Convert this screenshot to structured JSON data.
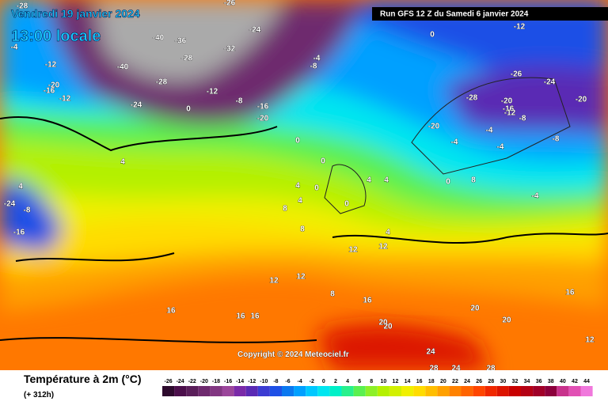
{
  "header": {
    "date": "Vendredi 19 janvier 2024",
    "time": "13:00 locale",
    "run": "Run GFS 12 Z du Samedi 6 janvier 2024"
  },
  "copyright": "Copyright © 2024 Meteociel.fr",
  "legend": {
    "title": "Température à 2m (°C)",
    "subtitle": "(+ 312h)",
    "ticks": [
      -26,
      -24,
      -22,
      -20,
      -18,
      -16,
      -14,
      -12,
      -10,
      -8,
      -6,
      -4,
      -2,
      0,
      2,
      4,
      6,
      8,
      10,
      12,
      14,
      16,
      18,
      20,
      22,
      24,
      26,
      28,
      30,
      32,
      34,
      36,
      38,
      40,
      42,
      44
    ],
    "colors": [
      "#2d0a2d",
      "#4b0f4b",
      "#5a1e5a",
      "#6e2a6e",
      "#823782",
      "#9b469b",
      "#7a2aa8",
      "#5a2ab4",
      "#3c3cd2",
      "#1e50e6",
      "#0a78f0",
      "#00a0ff",
      "#00c8ff",
      "#00e6f0",
      "#00f0c8",
      "#28f08c",
      "#5af050",
      "#8cf028",
      "#b4f000",
      "#d2f000",
      "#f0f000",
      "#ffdc00",
      "#ffbe00",
      "#ffa000",
      "#ff8200",
      "#ff6400",
      "#ff4600",
      "#f02800",
      "#dc1400",
      "#c80000",
      "#b40014",
      "#a00028",
      "#8c003c",
      "#c8328c",
      "#e150b4",
      "#f078dc"
    ]
  },
  "map_labels": [
    -28,
    -26,
    -24,
    -40,
    -36,
    -32,
    -28,
    -40,
    -4,
    -12,
    -20,
    -16,
    -12,
    -24,
    -28,
    -12,
    -8,
    -4,
    0,
    -8,
    -16,
    -20,
    0,
    0,
    -12,
    -20,
    -28,
    -24,
    -26,
    -20,
    -16,
    -12,
    -8,
    -4,
    -4,
    -8,
    -20,
    4,
    4,
    4,
    4,
    0,
    0,
    8,
    8,
    8,
    -4,
    4,
    0,
    4,
    12,
    12,
    12,
    12,
    16,
    16,
    16,
    16,
    20,
    20,
    20,
    20,
    24,
    24,
    28,
    28,
    16,
    12,
    8,
    -24,
    -16,
    -8,
    4,
    0,
    -4
  ]
}
